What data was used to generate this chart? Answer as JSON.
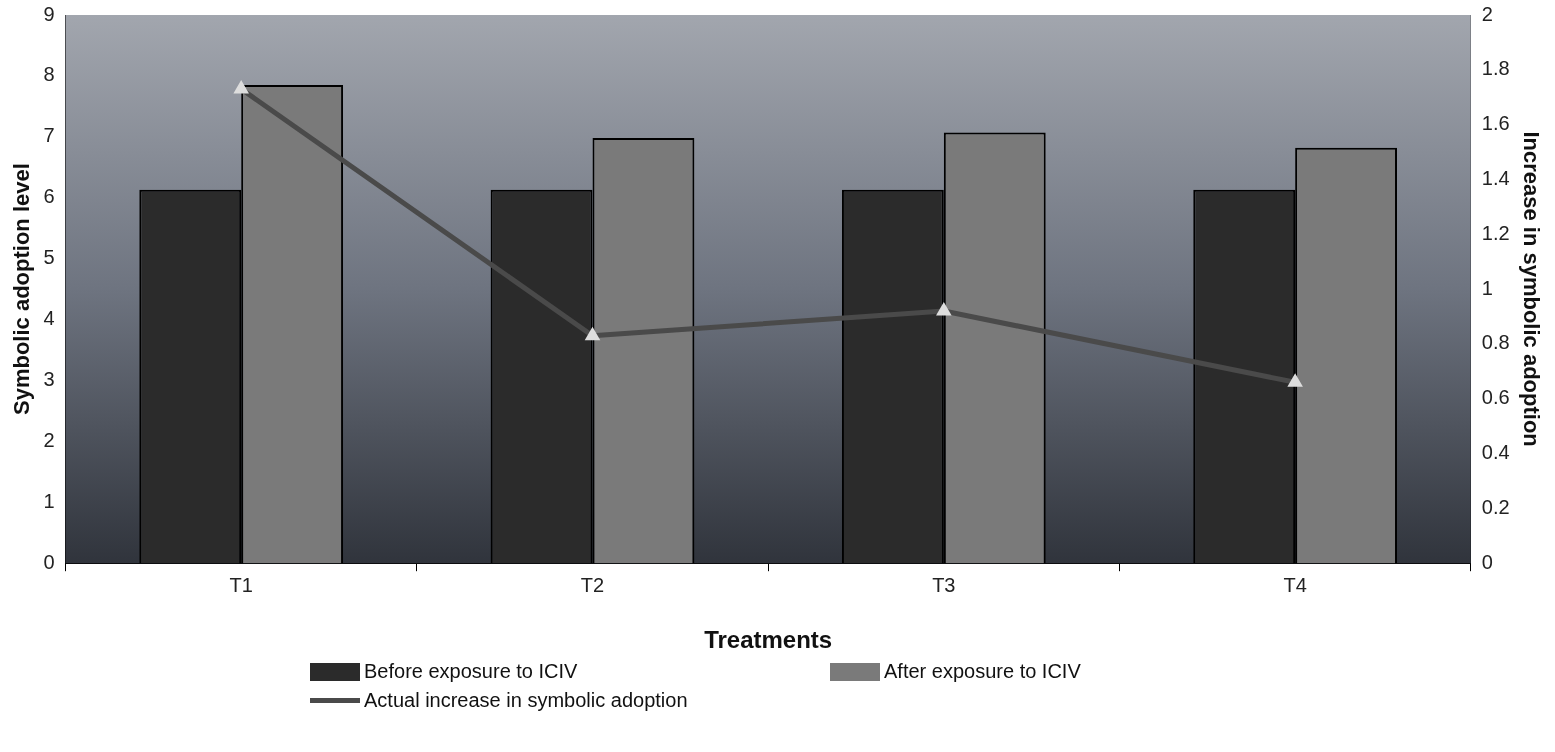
{
  "chart_data": {
    "type": "bar",
    "xlabel": "Treatments",
    "ylabel": "Symbolic adoption level",
    "y2label": "Increase in symbolic adoption",
    "categories": [
      "T1",
      "T2",
      "T3",
      "T4"
    ],
    "series": [
      {
        "name": "Before exposure to ICIV",
        "color": "#2b2b2b",
        "values": [
          6.13,
          6.13,
          6.13,
          6.13
        ]
      },
      {
        "name": "After exposure to ICIV",
        "color": "#7a7a7a",
        "values": [
          7.85,
          6.98,
          7.07,
          6.82
        ]
      },
      {
        "name": "Actual increase in symbolic adoption",
        "type": "line",
        "axis": "y2",
        "color": "#4a4a4a",
        "values": [
          1.73,
          0.83,
          0.92,
          0.66
        ]
      }
    ],
    "ylim": [
      0,
      9
    ],
    "yticks": [
      0,
      1,
      2,
      3,
      4,
      5,
      6,
      7,
      8,
      9
    ],
    "y2lim": [
      0,
      2
    ],
    "y2ticks": [
      0,
      {
        "value": 0.2,
        "label": "0.2"
      },
      {
        "value": 0.4,
        "label": "0.4"
      },
      {
        "value": 0.6,
        "label": "0.6"
      },
      {
        "value": 0.8,
        "label": "0.8"
      },
      1,
      {
        "value": 1.2,
        "label": "1.2"
      },
      {
        "value": 1.4,
        "label": "1.4"
      },
      {
        "value": 1.6,
        "label": "1.6"
      },
      {
        "value": 1.8,
        "label": "1.8"
      },
      2
    ],
    "grid": false,
    "legend": "bottom",
    "marker": "triangle",
    "line_style": "solid"
  }
}
